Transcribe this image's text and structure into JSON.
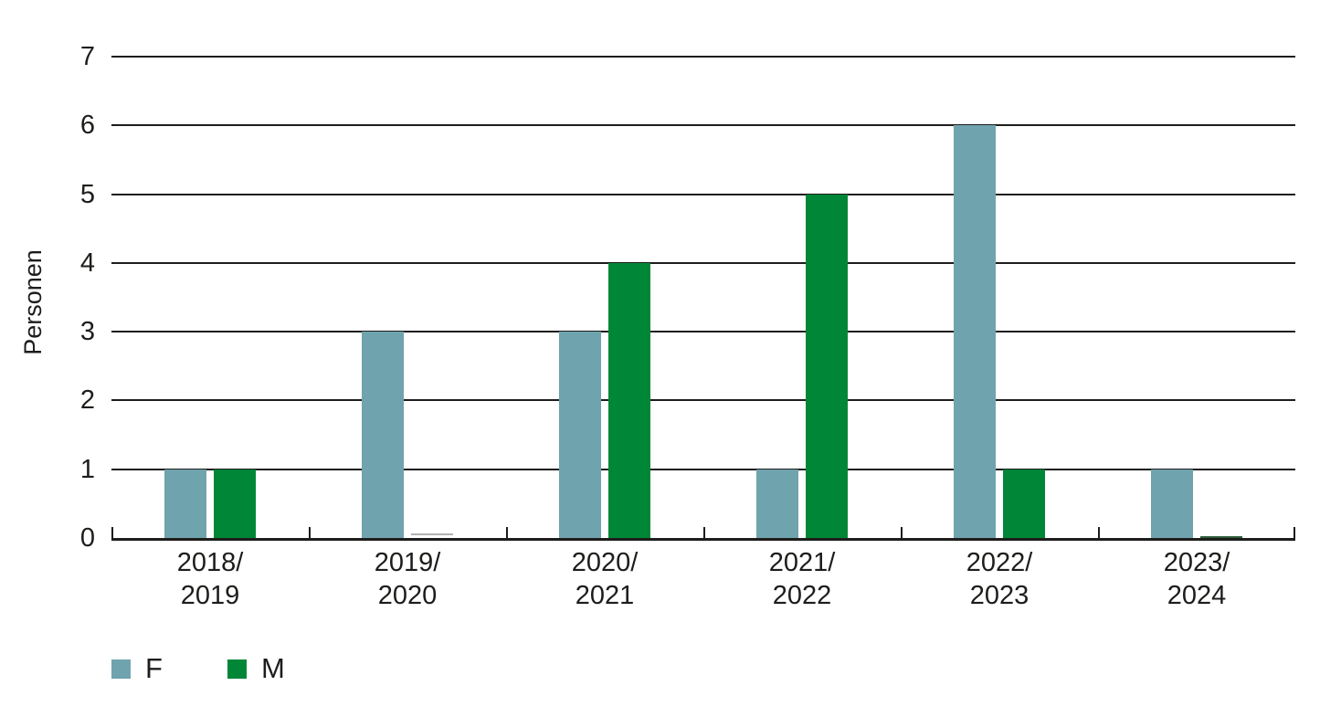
{
  "chart_data": {
    "type": "bar",
    "title": "",
    "xlabel": "",
    "ylabel": "Personen",
    "ylim": [
      0,
      7
    ],
    "yticks": [
      0,
      1,
      2,
      3,
      4,
      5,
      6,
      7
    ],
    "grid": true,
    "legend_position": "bottom-left",
    "categories": [
      "2018/2019",
      "2019/2020",
      "2020/2021",
      "2021/2022",
      "2022/2023",
      "2023/2024"
    ],
    "category_labels_two_line": [
      "2018/\n2019",
      "2019/\n2020",
      "2020/\n2021",
      "2021/\n2022",
      "2022/\n2023",
      "2023/\n2024"
    ],
    "series": [
      {
        "name": "F",
        "color": "#6fa3ad",
        "values": [
          1,
          3,
          3,
          1,
          6,
          1
        ]
      },
      {
        "name": "M",
        "color": "#008637",
        "values": [
          1,
          0,
          4,
          5,
          1,
          0
        ]
      }
    ],
    "zero_bar_artifacts": [
      {
        "category_index": 1,
        "series": "M",
        "color": "#b2b2b2",
        "gap_above_baseline": 3
      },
      {
        "category_index": 5,
        "series": "M",
        "color": "#2d5c3b",
        "gap_above_baseline": 0
      }
    ],
    "colors": {
      "axis_and_text": "#1d1d1b",
      "background": "#ffffff"
    }
  }
}
